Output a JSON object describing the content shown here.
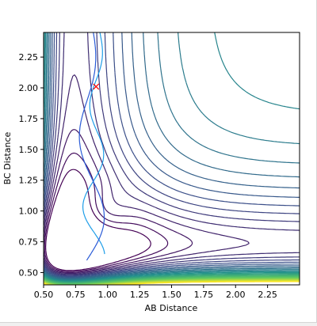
{
  "chart_data": {
    "type": "contour",
    "title": "",
    "xlabel": "AB Distance",
    "ylabel": "BC Distance",
    "xlim": [
      0.5,
      2.5
    ],
    "ylim": [
      0.4,
      2.45
    ],
    "x_ticks": [
      "0.50",
      "0.75",
      "1.00",
      "1.25",
      "1.50",
      "1.75",
      "2.00",
      "2.25"
    ],
    "y_ticks": [
      "0.50",
      "0.75",
      "1.00",
      "1.25",
      "1.50",
      "1.75",
      "2.00",
      "2.25"
    ],
    "grid": false,
    "legend": "none",
    "colormap": "viridis",
    "colormap_colors": [
      "#440154",
      "#3b528b",
      "#21918c",
      "#5ec962",
      "#fde725"
    ],
    "trajectory_color": "#2a5bd7",
    "trajectory_color_light": "#1f9ee8",
    "marker": {
      "symbol": "x",
      "color": "#ff0000",
      "x": 0.91,
      "y": 2.01
    }
  }
}
